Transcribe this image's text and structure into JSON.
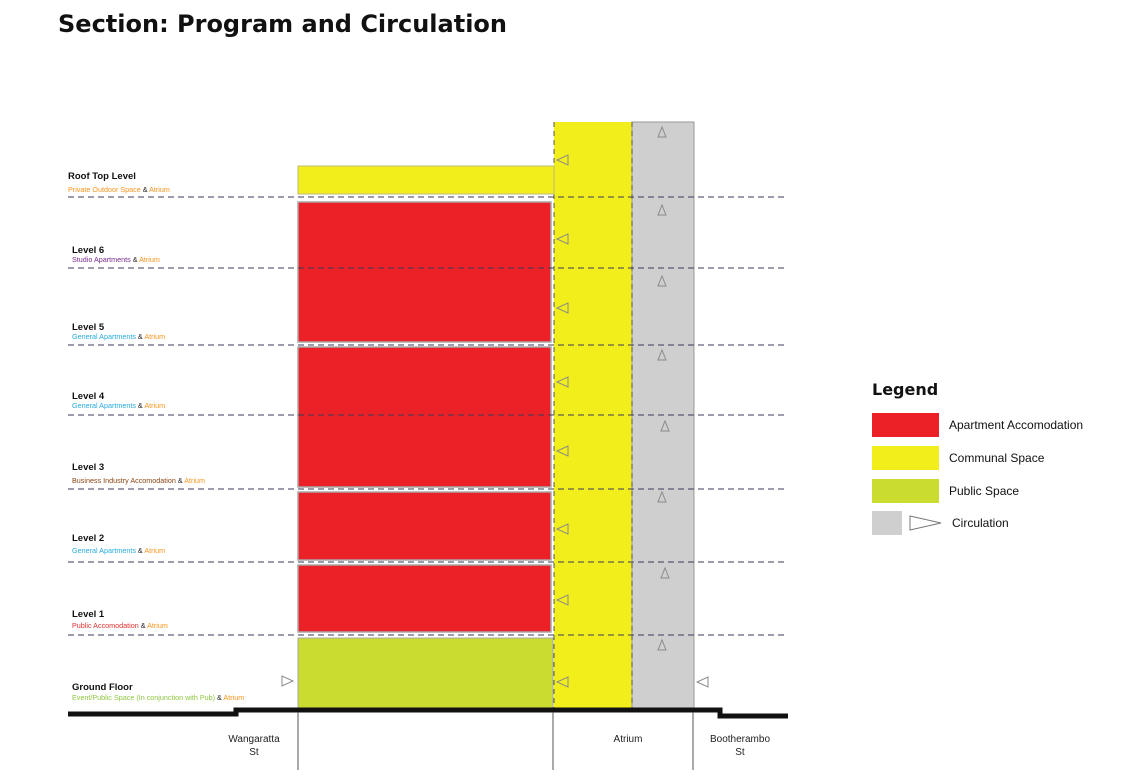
{
  "title": "Section: Program and Circulation",
  "colors": {
    "apartment": "#ec2027",
    "communal": "#f2ee1c",
    "public": "#c9dc2f",
    "circulation": "#cfcfcf",
    "atrium_label": "#f7941d",
    "private_outdoor": "#f7941d",
    "studio": "#7b2c8f",
    "general": "#27aae1",
    "business": "#8b4513",
    "public_accom": "#e0322c",
    "event_public": "#8dc63f"
  },
  "levels": [
    {
      "name": "Roof Top Level",
      "use": "Private Outdoor Space",
      "amp": " & ",
      "atrium": "Atrium",
      "use_color_key": "private_outdoor"
    },
    {
      "name": "Level 6",
      "use": "Studio Apartments",
      "amp": " & ",
      "atrium": "Atrium",
      "use_color_key": "studio"
    },
    {
      "name": "Level 5",
      "use": "General Apartments",
      "amp": " & ",
      "atrium": "Atrium",
      "use_color_key": "general"
    },
    {
      "name": "Level 4",
      "use": "General Apartments",
      "amp": " & ",
      "atrium": "Atrium",
      "use_color_key": "general"
    },
    {
      "name": "Level 3",
      "use": "Business Industry Accomodation",
      "amp": " & ",
      "atrium": "Atrium",
      "use_color_key": "business"
    },
    {
      "name": "Level 2",
      "use": "General Apartments",
      "amp": " & ",
      "atrium": "Atrium",
      "use_color_key": "general"
    },
    {
      "name": "Level 1",
      "use": "Public Accomodation",
      "amp": " & ",
      "atrium": "Atrium",
      "use_color_key": "public_accom"
    },
    {
      "name": "Ground Floor",
      "use": "Event/Public Space (In conjunction with Pub)",
      "amp": " & ",
      "atrium": "Atrium",
      "use_color_key": "event_public"
    }
  ],
  "streets": {
    "left_line1": "Wangaratta",
    "left_line2": "St",
    "center": "Atrium",
    "right_line1": "Bootherambo",
    "right_line2": "St"
  },
  "legend": {
    "title": "Legend",
    "items": [
      {
        "label": "Apartment Accomodation",
        "color_key": "apartment",
        "icon": "red-swatch"
      },
      {
        "label": "Communal Space",
        "color_key": "communal",
        "icon": "yellow-swatch"
      },
      {
        "label": "Public Space",
        "color_key": "public",
        "icon": "green-swatch"
      },
      {
        "label": "Circulation",
        "color_key": "circulation",
        "icon": "grey-swatch-triangle-icon"
      }
    ]
  }
}
